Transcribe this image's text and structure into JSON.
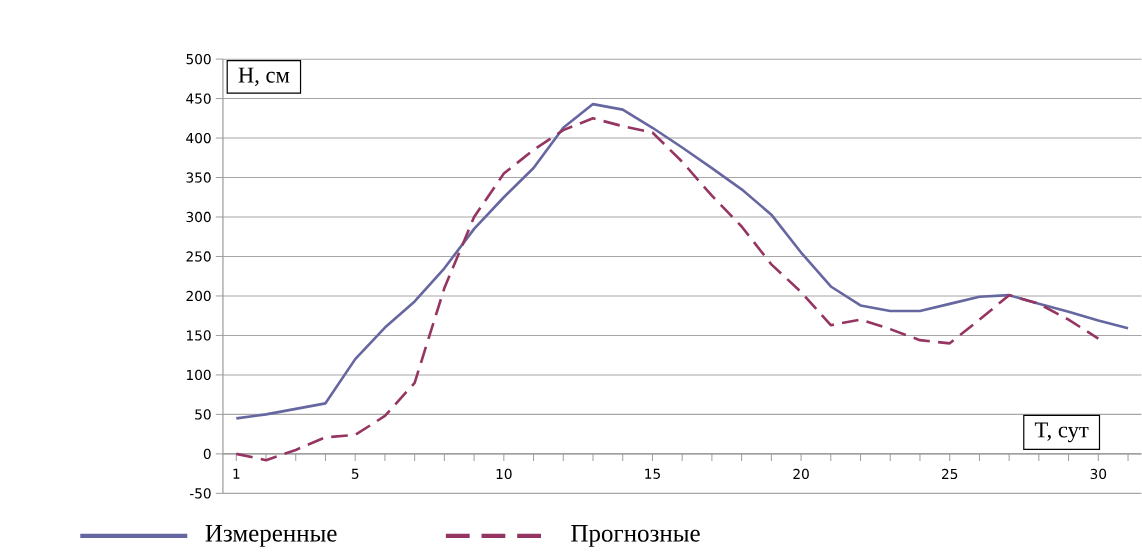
{
  "chart_data": {
    "type": "line",
    "xlabel": "T, сут",
    "ylabel": "H, см",
    "categories": [
      "1",
      null,
      null,
      null,
      "5",
      null,
      null,
      null,
      null,
      "10",
      null,
      null,
      null,
      null,
      "15",
      null,
      null,
      null,
      null,
      "20",
      null,
      null,
      null,
      null,
      "25",
      null,
      null,
      null,
      null,
      "30",
      null
    ],
    "series": [
      {
        "name": "Измеренные",
        "color": "#6666a0",
        "line_style": "solid",
        "values": [
          45,
          50,
          57,
          64,
          120,
          160,
          193,
          235,
          285,
          325,
          362,
          413,
          443,
          436,
          413,
          388,
          362,
          335,
          303,
          255,
          212,
          188,
          181,
          181,
          190,
          199,
          201,
          190,
          180,
          169,
          159
        ]
      },
      {
        "name": "Прогнозные",
        "color": "#953561",
        "line_style": "dashed",
        "values": [
          0,
          -8,
          5,
          21,
          24,
          48,
          90,
          210,
          300,
          355,
          385,
          410,
          425,
          415,
          407,
          370,
          327,
          288,
          240,
          205,
          163,
          170,
          158,
          144,
          140,
          170,
          201,
          190,
          170,
          146,
          null
        ]
      }
    ],
    "ylim": [
      -50,
      500
    ],
    "yticks": [
      -50,
      0,
      50,
      100,
      150,
      200,
      250,
      300,
      350,
      400,
      450,
      500
    ],
    "grid": "y",
    "legend": "bottom"
  }
}
